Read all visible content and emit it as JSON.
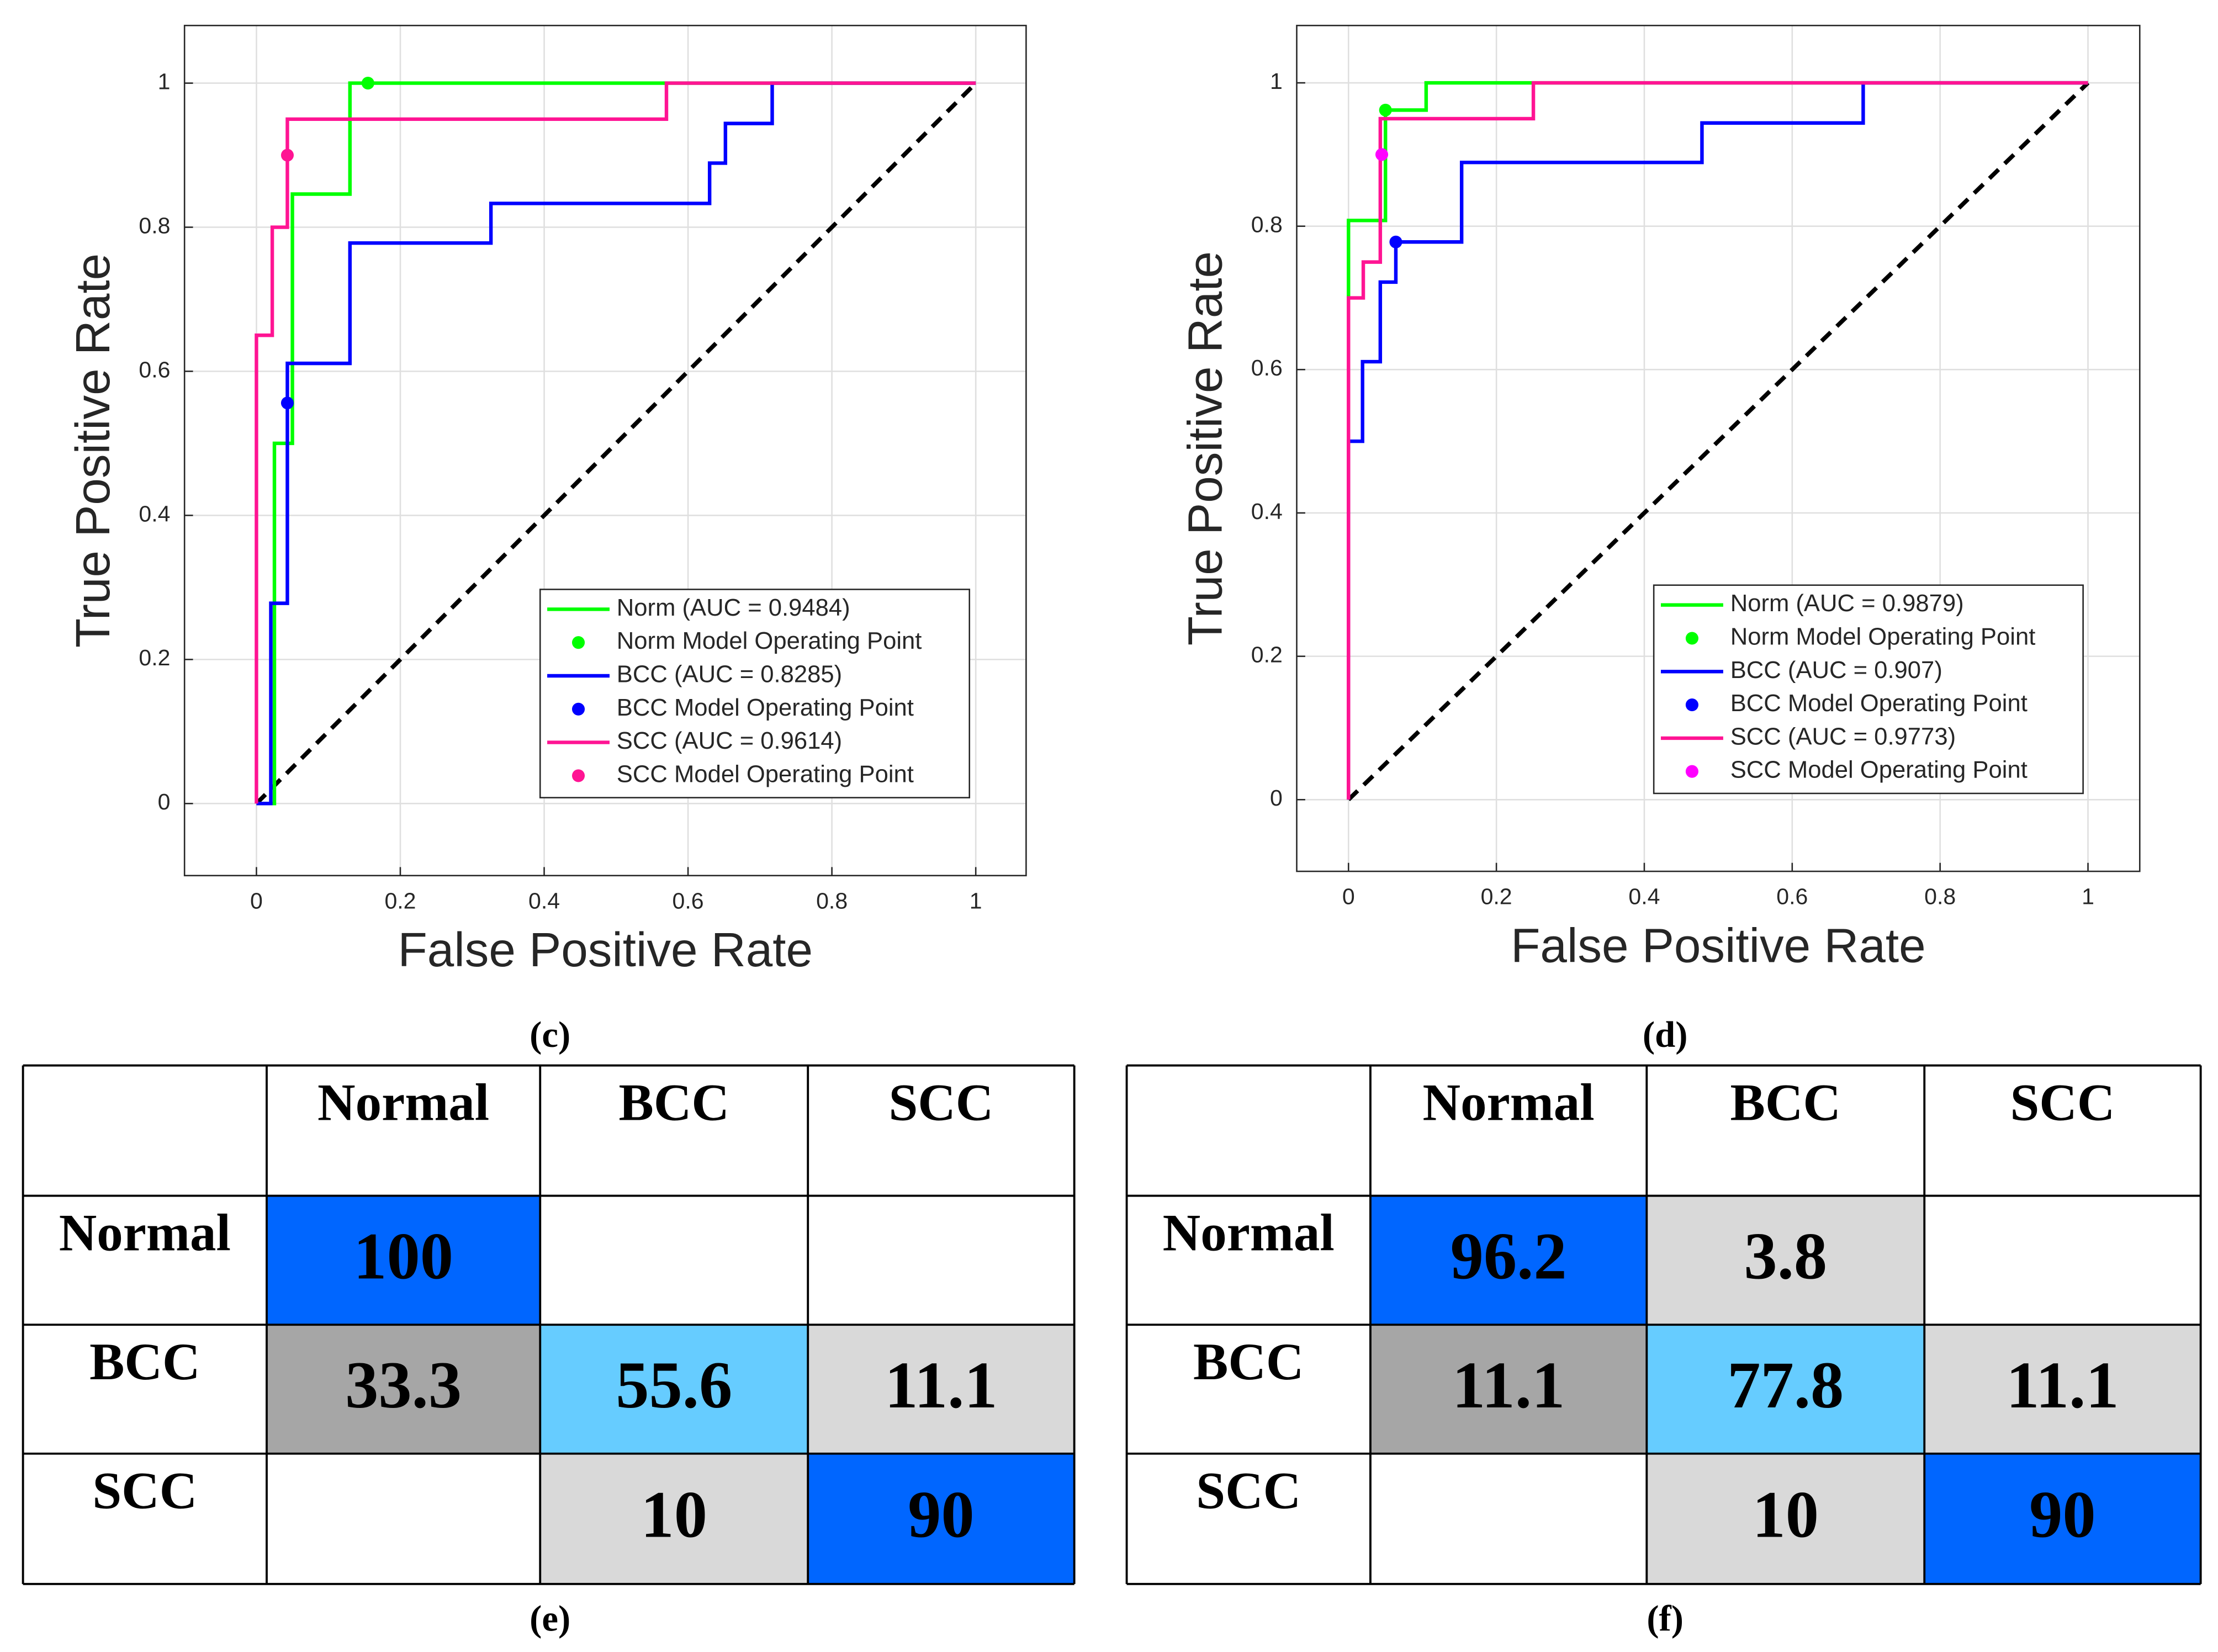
{
  "chart_data": [
    {
      "type": "line",
      "caption": "(c)",
      "xlabel": "False Positive Rate",
      "ylabel": "True Positive Rate",
      "xlim": [
        -0.1,
        1.07
      ],
      "ylim": [
        -0.1,
        1.08
      ],
      "xticks": [
        0,
        0.2,
        0.4,
        0.6,
        0.8,
        1
      ],
      "yticks": [
        0,
        0.2,
        0.4,
        0.6,
        0.8,
        1
      ],
      "grid": true,
      "legend": "southeast",
      "series": [
        {
          "name": "Norm (AUC = 0.9484)",
          "mode": "line",
          "color": "#00ff00",
          "x": [
            0,
            0.025,
            0.025,
            0.05,
            0.05,
            0.13,
            0.13,
            1
          ],
          "y": [
            0,
            0,
            0.5,
            0.5,
            0.846,
            0.846,
            1,
            1
          ]
        },
        {
          "name": "Norm Model Operating Point",
          "mode": "marker",
          "color": "#00ff00",
          "x": [
            0.155
          ],
          "y": [
            1
          ]
        },
        {
          "name": "BCC (AUC = 0.8285)",
          "mode": "line",
          "color": "#0000ff",
          "x": [
            0,
            0.02,
            0.02,
            0.043,
            0.043,
            0.13,
            0.13,
            0.326,
            0.326,
            0.63,
            0.63,
            0.652,
            0.652,
            0.717,
            0.717,
            1
          ],
          "y": [
            0,
            0,
            0.278,
            0.278,
            0.611,
            0.611,
            0.778,
            0.778,
            0.833,
            0.833,
            0.889,
            0.889,
            0.944,
            0.944,
            1,
            1
          ]
        },
        {
          "name": "BCC Model Operating Point",
          "mode": "marker",
          "color": "#0000ff",
          "x": [
            0.043
          ],
          "y": [
            0.556
          ]
        },
        {
          "name": "SCC (AUC = 0.9614)",
          "mode": "line",
          "color": "#ff1493",
          "x": [
            0,
            0,
            0.022,
            0.022,
            0.043,
            0.043,
            0.57,
            0.57,
            1
          ],
          "y": [
            0,
            0.65,
            0.65,
            0.8,
            0.8,
            0.95,
            0.95,
            1,
            1
          ]
        },
        {
          "name": "SCC Model Operating Point",
          "mode": "marker",
          "color": "#ff1493",
          "x": [
            0.043
          ],
          "y": [
            0.9
          ]
        }
      ]
    },
    {
      "type": "line",
      "caption": "(d)",
      "xlabel": "False Positive Rate",
      "ylabel": "True Positive Rate",
      "xlim": [
        -0.07,
        1.07
      ],
      "ylim": [
        -0.1,
        1.08
      ],
      "xticks": [
        0,
        0.2,
        0.4,
        0.6,
        0.8,
        1
      ],
      "yticks": [
        0,
        0.2,
        0.4,
        0.6,
        0.8,
        1
      ],
      "grid": true,
      "legend": "southeast",
      "series": [
        {
          "name": "Norm (AUC = 0.9879)",
          "mode": "line",
          "color": "#00ff00",
          "x": [
            0,
            0,
            0.05,
            0.05,
            0.105,
            0.105,
            1
          ],
          "y": [
            0.7,
            0.808,
            0.808,
            0.962,
            0.962,
            1,
            1
          ]
        },
        {
          "name": "Norm Model Operating Point",
          "mode": "marker",
          "color": "#00ff00",
          "x": [
            0.05
          ],
          "y": [
            0.962
          ]
        },
        {
          "name": "BCC (AUC = 0.907)",
          "mode": "line",
          "color": "#0000ff",
          "x": [
            0,
            0,
            0.019,
            0.019,
            0.043,
            0.043,
            0.064,
            0.064,
            0.153,
            0.153,
            0.478,
            0.478,
            0.696,
            0.696,
            1
          ],
          "y": [
            0,
            0.5,
            0.5,
            0.611,
            0.611,
            0.722,
            0.722,
            0.778,
            0.778,
            0.889,
            0.889,
            0.944,
            0.944,
            1,
            1
          ]
        },
        {
          "name": "BCC Model Operating Point",
          "mode": "marker",
          "color": "#0000ff",
          "x": [
            0.064
          ],
          "y": [
            0.778
          ]
        },
        {
          "name": "SCC (AUC = 0.9773)",
          "mode": "line",
          "color": "#ff1493",
          "x": [
            0,
            0,
            0.02,
            0.02,
            0.043,
            0.043,
            0.25,
            0.25,
            1
          ],
          "y": [
            0,
            0.7,
            0.7,
            0.75,
            0.75,
            0.95,
            0.95,
            1,
            1
          ]
        },
        {
          "name": "SCC Model Operating Point",
          "mode": "marker",
          "color": "#ff00ff",
          "x": [
            0.045
          ],
          "y": [
            0.9
          ]
        }
      ]
    }
  ],
  "tables": [
    {
      "caption": "(e)",
      "columns": [
        "Normal",
        "BCC",
        "SCC"
      ],
      "rows": [
        {
          "label": "Normal",
          "cells": [
            100,
            null,
            null
          ],
          "colors": [
            "#0066ff",
            "#ffffff",
            "#ffffff"
          ]
        },
        {
          "label": "BCC",
          "cells": [
            33.3,
            55.6,
            11.1
          ],
          "colors": [
            "#a6a6a6",
            "#66ccff",
            "#d9d9d9"
          ]
        },
        {
          "label": "SCC",
          "cells": [
            null,
            10,
            90
          ],
          "colors": [
            "#ffffff",
            "#d9d9d9",
            "#0066ff"
          ]
        }
      ]
    },
    {
      "caption": "(f)",
      "columns": [
        "Normal",
        "BCC",
        "SCC"
      ],
      "rows": [
        {
          "label": "Normal",
          "cells": [
            96.2,
            3.8,
            null
          ],
          "colors": [
            "#0066ff",
            "#d9d9d9",
            "#ffffff"
          ]
        },
        {
          "label": "BCC",
          "cells": [
            11.1,
            77.8,
            11.1
          ],
          "colors": [
            "#a6a6a6",
            "#66ccff",
            "#d9d9d9"
          ]
        },
        {
          "label": "SCC",
          "cells": [
            null,
            10,
            90
          ],
          "colors": [
            "#ffffff",
            "#d9d9d9",
            "#0066ff"
          ]
        }
      ]
    }
  ]
}
